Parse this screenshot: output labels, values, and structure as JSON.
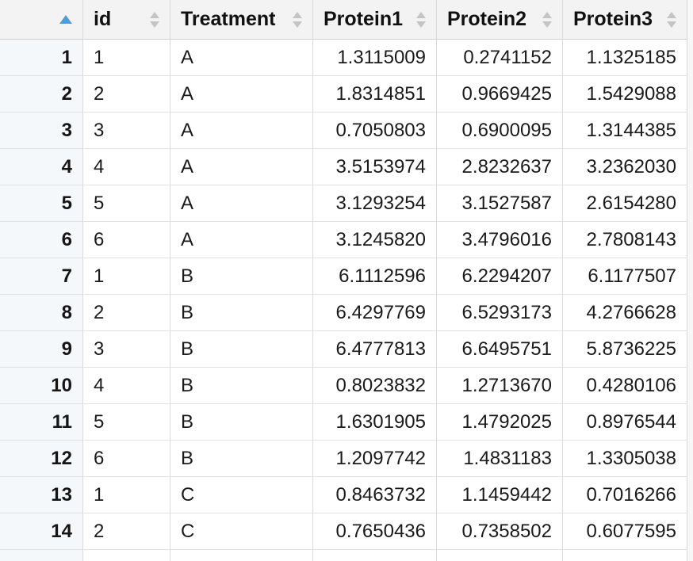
{
  "table": {
    "sort": {
      "column": "row-number",
      "direction": "ascending"
    },
    "row_number_header": "",
    "columns": [
      {
        "key": "id",
        "label": "id",
        "align": "left"
      },
      {
        "key": "treatment",
        "label": "Treatment",
        "align": "left"
      },
      {
        "key": "protein1",
        "label": "Protein1",
        "align": "right"
      },
      {
        "key": "protein2",
        "label": "Protein2",
        "align": "right"
      },
      {
        "key": "protein3",
        "label": "Protein3",
        "align": "right"
      }
    ],
    "rows": [
      {
        "row_number": "1",
        "id": "1",
        "treatment": "A",
        "protein1": "1.3115009",
        "protein2": "0.2741152",
        "protein3": "1.1325185"
      },
      {
        "row_number": "2",
        "id": "2",
        "treatment": "A",
        "protein1": "1.8314851",
        "protein2": "0.9669425",
        "protein3": "1.5429088"
      },
      {
        "row_number": "3",
        "id": "3",
        "treatment": "A",
        "protein1": "0.7050803",
        "protein2": "0.6900095",
        "protein3": "1.3144385"
      },
      {
        "row_number": "4",
        "id": "4",
        "treatment": "A",
        "protein1": "3.5153974",
        "protein2": "2.8232637",
        "protein3": "3.2362030"
      },
      {
        "row_number": "5",
        "id": "5",
        "treatment": "A",
        "protein1": "3.1293254",
        "protein2": "3.1527587",
        "protein3": "2.6154280"
      },
      {
        "row_number": "6",
        "id": "6",
        "treatment": "A",
        "protein1": "3.1245820",
        "protein2": "3.4796016",
        "protein3": "2.7808143"
      },
      {
        "row_number": "7",
        "id": "1",
        "treatment": "B",
        "protein1": "6.1112596",
        "protein2": "6.2294207",
        "protein3": "6.1177507"
      },
      {
        "row_number": "8",
        "id": "2",
        "treatment": "B",
        "protein1": "6.4297769",
        "protein2": "6.5293173",
        "protein3": "4.2766628"
      },
      {
        "row_number": "9",
        "id": "3",
        "treatment": "B",
        "protein1": "6.4777813",
        "protein2": "6.6495751",
        "protein3": "5.8736225"
      },
      {
        "row_number": "10",
        "id": "4",
        "treatment": "B",
        "protein1": "0.8023832",
        "protein2": "1.2713670",
        "protein3": "0.4280106"
      },
      {
        "row_number": "11",
        "id": "5",
        "treatment": "B",
        "protein1": "1.6301905",
        "protein2": "1.4792025",
        "protein3": "0.8976544"
      },
      {
        "row_number": "12",
        "id": "6",
        "treatment": "B",
        "protein1": "1.2097742",
        "protein2": "1.4831183",
        "protein3": "1.3305038"
      },
      {
        "row_number": "13",
        "id": "1",
        "treatment": "C",
        "protein1": "0.8463732",
        "protein2": "1.1459442",
        "protein3": "0.7016266"
      },
      {
        "row_number": "14",
        "id": "2",
        "treatment": "C",
        "protein1": "0.7650436",
        "protein2": "0.7358502",
        "protein3": "0.6077595"
      }
    ],
    "partial_next_row_visible": true
  },
  "icons": {
    "sort_ascending_active": "triangle-up",
    "sort_both": "triangle-up-down"
  },
  "colors": {
    "header_bg": "#f3f3f3",
    "row_number_bg": "#f5f8fa",
    "cell_bg": "#ffffff",
    "vertical_border": "#d9d9d9",
    "horizontal_border": "#e2e2e2",
    "header_border": "#cfcfcf",
    "sort_active": "#4a9ed9",
    "sort_inactive": "#c4c4c4",
    "text": "#1a1a1a"
  }
}
